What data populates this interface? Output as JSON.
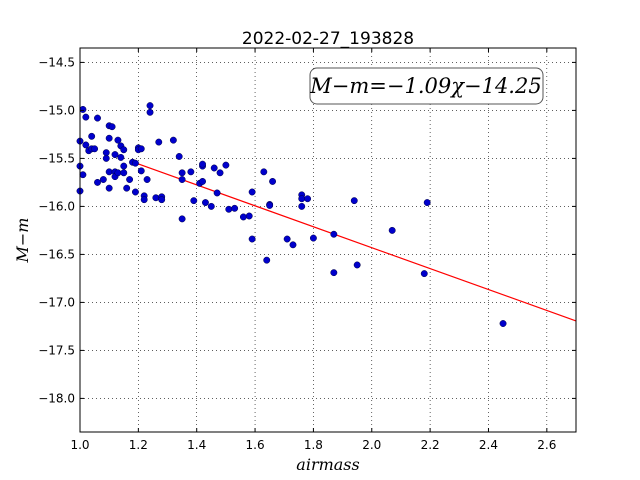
{
  "chart_data": {
    "type": "scatter",
    "title": "2022-02-27_193828",
    "xlabel": "airmass",
    "ylabel": "M−m",
    "xlim": [
      1.0,
      2.7
    ],
    "ylim": [
      -18.35,
      -14.35
    ],
    "y_inverted": true,
    "grid": true,
    "xticks": [
      "1.0",
      "1.2",
      "1.4",
      "1.6",
      "1.8",
      "2.0",
      "2.2",
      "2.4",
      "2.6"
    ],
    "yticks": [
      "−14.5",
      "−15.0",
      "−15.5",
      "−16.0",
      "−16.5",
      "−17.0",
      "−17.5",
      "−18.0"
    ],
    "annotation": "M−m=−1.09χ−14.25",
    "fit": {
      "slope": -1.09,
      "intercept": -14.25,
      "color": "#ff0000"
    },
    "point_color": "#0000cc",
    "series": [
      {
        "points": [
          [
            1.0,
            -15.32
          ],
          [
            1.0,
            -15.58
          ],
          [
            1.0,
            -15.84
          ],
          [
            1.01,
            -15.67
          ],
          [
            1.01,
            -14.99
          ],
          [
            1.02,
            -15.07
          ],
          [
            1.02,
            -15.36
          ],
          [
            1.03,
            -15.42
          ],
          [
            1.04,
            -15.27
          ],
          [
            1.04,
            -15.4
          ],
          [
            1.05,
            -15.4
          ],
          [
            1.06,
            -15.75
          ],
          [
            1.06,
            -15.08
          ],
          [
            1.08,
            -15.72
          ],
          [
            1.09,
            -15.44
          ],
          [
            1.09,
            -15.5
          ],
          [
            1.1,
            -15.16
          ],
          [
            1.1,
            -15.29
          ],
          [
            1.1,
            -15.64
          ],
          [
            1.1,
            -15.81
          ],
          [
            1.11,
            -15.17
          ],
          [
            1.12,
            -15.46
          ],
          [
            1.12,
            -15.64
          ],
          [
            1.12,
            -15.69
          ],
          [
            1.13,
            -15.65
          ],
          [
            1.13,
            -15.31
          ],
          [
            1.14,
            -15.49
          ],
          [
            1.14,
            -15.37
          ],
          [
            1.15,
            -15.41
          ],
          [
            1.15,
            -15.58
          ],
          [
            1.15,
            -15.65
          ],
          [
            1.16,
            -15.81
          ],
          [
            1.17,
            -15.72
          ],
          [
            1.18,
            -15.54
          ],
          [
            1.19,
            -15.55
          ],
          [
            1.19,
            -15.85
          ],
          [
            1.2,
            -15.39
          ],
          [
            1.2,
            -15.41
          ],
          [
            1.21,
            -15.4
          ],
          [
            1.21,
            -15.63
          ],
          [
            1.22,
            -15.89
          ],
          [
            1.22,
            -15.93
          ],
          [
            1.23,
            -15.72
          ],
          [
            1.24,
            -14.95
          ],
          [
            1.24,
            -15.02
          ],
          [
            1.26,
            -15.91
          ],
          [
            1.27,
            -15.33
          ],
          [
            1.28,
            -15.9
          ],
          [
            1.28,
            -15.93
          ],
          [
            1.32,
            -15.31
          ],
          [
            1.34,
            -15.48
          ],
          [
            1.35,
            -15.72
          ],
          [
            1.35,
            -15.65
          ],
          [
            1.35,
            -16.13
          ],
          [
            1.38,
            -15.64
          ],
          [
            1.39,
            -15.94
          ],
          [
            1.41,
            -15.76
          ],
          [
            1.42,
            -15.58
          ],
          [
            1.42,
            -15.56
          ],
          [
            1.42,
            -15.74
          ],
          [
            1.43,
            -15.96
          ],
          [
            1.45,
            -16.0
          ],
          [
            1.46,
            -15.6
          ],
          [
            1.47,
            -15.86
          ],
          [
            1.48,
            -15.65
          ],
          [
            1.5,
            -15.57
          ],
          [
            1.51,
            -16.03
          ],
          [
            1.53,
            -16.02
          ],
          [
            1.56,
            -16.11
          ],
          [
            1.58,
            -16.1
          ],
          [
            1.59,
            -15.85
          ],
          [
            1.59,
            -16.34
          ],
          [
            1.63,
            -15.64
          ],
          [
            1.64,
            -16.56
          ],
          [
            1.65,
            -15.98
          ],
          [
            1.65,
            -15.99
          ],
          [
            1.66,
            -15.74
          ],
          [
            1.71,
            -16.34
          ],
          [
            1.73,
            -16.4
          ],
          [
            1.76,
            -15.88
          ],
          [
            1.76,
            -15.92
          ],
          [
            1.76,
            -16.0
          ],
          [
            1.78,
            -15.92
          ],
          [
            1.8,
            -16.33
          ],
          [
            1.87,
            -16.29
          ],
          [
            1.87,
            -16.69
          ],
          [
            1.94,
            -15.94
          ],
          [
            1.95,
            -16.61
          ],
          [
            2.07,
            -16.25
          ],
          [
            2.18,
            -16.7
          ],
          [
            2.19,
            -15.96
          ],
          [
            2.45,
            -17.22
          ]
        ]
      }
    ]
  }
}
